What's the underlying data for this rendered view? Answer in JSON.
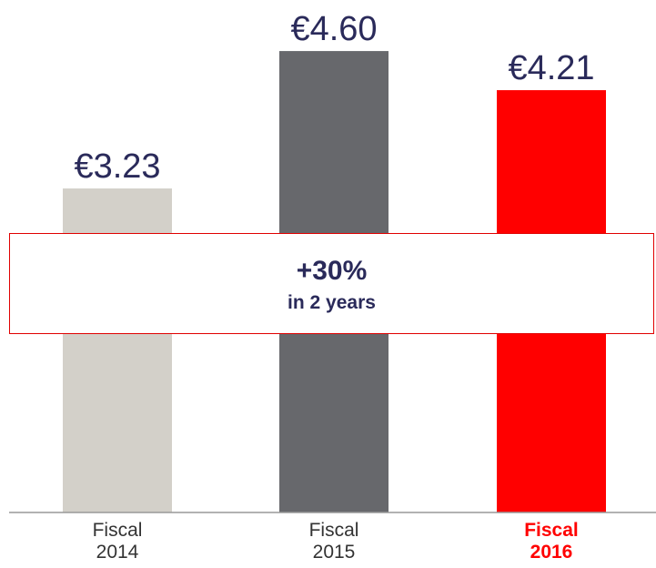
{
  "chart_data": {
    "type": "bar",
    "categories": [
      "Fiscal 2014",
      "Fiscal 2015",
      "Fiscal 2016"
    ],
    "values": [
      3.23,
      4.6,
      4.21
    ],
    "value_labels": [
      "€3.23",
      "€4.60",
      "€4.21"
    ],
    "colors": [
      "#d3d0c9",
      "#67686c",
      "#ff0000"
    ],
    "highlight": 2,
    "annotation": {
      "title": "+30%",
      "subtitle": "in 2 years"
    }
  }
}
